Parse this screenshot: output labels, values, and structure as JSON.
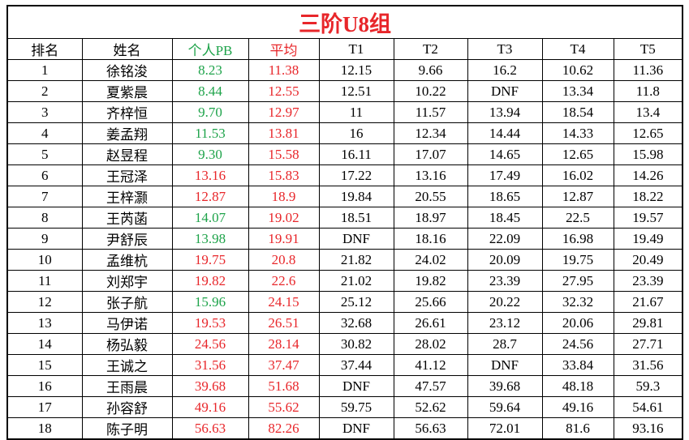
{
  "table": {
    "title": "三阶U8组",
    "header": [
      "排名",
      "姓名",
      "个人PB",
      "平均",
      "T1",
      "T2",
      "T3",
      "T4",
      "T5"
    ],
    "rows": [
      [
        "1",
        "徐铭浚",
        "8.23",
        "11.38",
        "12.15",
        "9.66",
        "16.2",
        "10.62",
        "11.36"
      ],
      [
        "2",
        "夏紫晨",
        "8.44",
        "12.55",
        "12.51",
        "10.22",
        "DNF",
        "13.34",
        "11.8"
      ],
      [
        "3",
        "齐梓恒",
        "9.70",
        "12.97",
        "11",
        "11.57",
        "13.94",
        "18.54",
        "13.4"
      ],
      [
        "4",
        "姜孟翔",
        "11.53",
        "13.81",
        "16",
        "12.34",
        "14.44",
        "14.33",
        "12.65"
      ],
      [
        "5",
        "赵昱程",
        "9.30",
        "15.58",
        "16.11",
        "17.07",
        "14.65",
        "12.65",
        "15.98"
      ],
      [
        "6",
        "王冠泽",
        "13.16",
        "15.83",
        "17.22",
        "13.16",
        "17.49",
        "16.02",
        "14.26"
      ],
      [
        "7",
        "王梓灏",
        "12.87",
        "18.9",
        "19.84",
        "20.55",
        "18.65",
        "12.87",
        "18.22"
      ],
      [
        "8",
        "王芮菡",
        "14.07",
        "19.02",
        "18.51",
        "18.97",
        "18.45",
        "22.5",
        "19.57"
      ],
      [
        "9",
        "尹舒辰",
        "13.98",
        "19.91",
        "DNF",
        "18.16",
        "22.09",
        "16.98",
        "19.49"
      ],
      [
        "10",
        "孟维杭",
        "19.75",
        "20.8",
        "21.82",
        "24.02",
        "20.09",
        "19.75",
        "20.49"
      ],
      [
        "11",
        "刘郑宇",
        "19.82",
        "22.6",
        "21.02",
        "19.82",
        "23.39",
        "27.95",
        "23.39"
      ],
      [
        "12",
        "张子航",
        "15.96",
        "24.15",
        "25.12",
        "25.66",
        "20.22",
        "32.32",
        "21.67"
      ],
      [
        "13",
        "马伊诺",
        "19.53",
        "26.51",
        "32.68",
        "26.61",
        "23.12",
        "20.06",
        "29.81"
      ],
      [
        "14",
        "杨弘毅",
        "24.56",
        "28.14",
        "30.82",
        "28.02",
        "28.7",
        "24.56",
        "27.71"
      ],
      [
        "15",
        "王诚之",
        "31.56",
        "37.47",
        "37.44",
        "41.12",
        "DNF",
        "33.84",
        "31.56"
      ],
      [
        "16",
        "王雨晨",
        "39.68",
        "51.68",
        "DNF",
        "47.57",
        "39.68",
        "48.18",
        "59.3"
      ],
      [
        "17",
        "孙容舒",
        "49.16",
        "55.62",
        "59.75",
        "52.62",
        "59.64",
        "49.16",
        "54.61"
      ],
      [
        "18",
        "陈子明",
        "56.63",
        "82.26",
        "DNF",
        "56.63",
        "72.01",
        "81.6",
        "93.16"
      ]
    ],
    "pb_colors": [
      "#1ea34a",
      "#1ea34a",
      "#1ea34a",
      "#1ea34a",
      "#1ea34a",
      "#e8262a",
      "#e8262a",
      "#1ea34a",
      "#1ea34a",
      "#e8262a",
      "#e8262a",
      "#1ea34a",
      "#e8262a",
      "#e8262a",
      "#e8262a",
      "#e8262a",
      "#e8262a",
      "#e8262a"
    ]
  }
}
